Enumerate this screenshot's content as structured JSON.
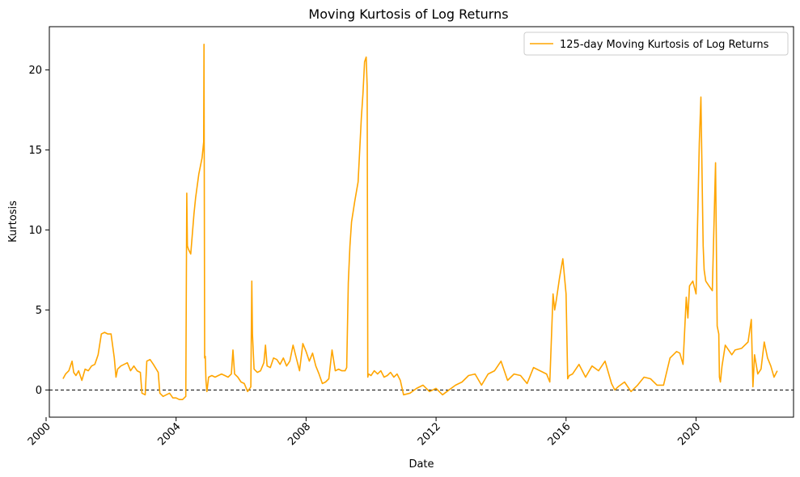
{
  "chart_data": {
    "type": "line",
    "title": "Moving Kurtosis of Log Returns",
    "xlabel": "Date",
    "ylabel": "Kurtosis",
    "xlim": [
      2000.1,
      2023.0
    ],
    "ylim": [
      -1.7,
      22.7
    ],
    "x_ticks": [
      2000,
      2004,
      2008,
      2012,
      2016,
      2020
    ],
    "x_tick_labels": [
      "2000",
      "2004",
      "2008",
      "2012",
      "2016",
      "2020"
    ],
    "y_ticks": [
      0,
      5,
      10,
      15,
      20
    ],
    "y_tick_labels": [
      "0",
      "5",
      "10",
      "15",
      "20"
    ],
    "grid": false,
    "legend_position": "top-right",
    "reference_line": {
      "y": 0,
      "style": "dashed",
      "color": "#000000"
    },
    "series": [
      {
        "name": "125-day Moving Kurtosis of Log Returns",
        "color": "#FFA500",
        "x": [
          2000.52,
          2000.6,
          2000.7,
          2000.8,
          2000.85,
          2000.92,
          2001.0,
          2001.1,
          2001.2,
          2001.3,
          2001.4,
          2001.5,
          2001.55,
          2001.6,
          2001.7,
          2001.8,
          2001.9,
          2002.0,
          2002.1,
          2002.15,
          2002.2,
          2002.3,
          2002.4,
          2002.5,
          2002.6,
          2002.7,
          2002.8,
          2002.9,
          2002.95,
          2003.05,
          2003.1,
          2003.2,
          2003.3,
          2003.45,
          2003.5,
          2003.6,
          2003.8,
          2003.9,
          2004.0,
          2004.1,
          2004.2,
          2004.3,
          2004.33,
          2004.35,
          2004.38,
          2004.45,
          2004.55,
          2004.6,
          2004.7,
          2004.8,
          2004.85,
          2004.86,
          2004.88,
          2004.9,
          2004.92,
          2004.95,
          2005.0,
          2005.1,
          2005.2,
          2005.3,
          2005.4,
          2005.5,
          2005.6,
          2005.7,
          2005.75,
          2005.8,
          2005.9,
          2006.0,
          2006.1,
          2006.2,
          2006.3,
          2006.33,
          2006.35,
          2006.4,
          2006.5,
          2006.6,
          2006.7,
          2006.75,
          2006.8,
          2006.9,
          2007.0,
          2007.1,
          2007.2,
          2007.3,
          2007.4,
          2007.5,
          2007.6,
          2007.7,
          2007.8,
          2007.9,
          2008.0,
          2008.1,
          2008.2,
          2008.3,
          2008.4,
          2008.5,
          2008.6,
          2008.7,
          2008.8,
          2008.9,
          2009.0,
          2009.1,
          2009.2,
          2009.25,
          2009.3,
          2009.35,
          2009.4,
          2009.5,
          2009.6,
          2009.7,
          2009.75,
          2009.8,
          2009.85,
          2009.88,
          2009.9,
          2009.92,
          2010.0,
          2010.1,
          2010.2,
          2010.3,
          2010.4,
          2010.5,
          2010.6,
          2010.7,
          2010.8,
          2010.9,
          2011.0,
          2011.2,
          2011.4,
          2011.6,
          2011.8,
          2012.0,
          2012.2,
          2012.4,
          2012.6,
          2012.8,
          2013.0,
          2013.2,
          2013.4,
          2013.6,
          2013.8,
          2014.0,
          2014.2,
          2014.4,
          2014.6,
          2014.8,
          2015.0,
          2015.2,
          2015.4,
          2015.5,
          2015.6,
          2015.65,
          2015.7,
          2015.8,
          2015.9,
          2016.0,
          2016.05,
          2016.1,
          2016.2,
          2016.4,
          2016.6,
          2016.8,
          2017.0,
          2017.2,
          2017.4,
          2017.5,
          2017.6,
          2017.8,
          2018.0,
          2018.2,
          2018.4,
          2018.6,
          2018.8,
          2019.0,
          2019.2,
          2019.4,
          2019.5,
          2019.6,
          2019.7,
          2019.75,
          2019.8,
          2019.9,
          2020.0,
          2020.1,
          2020.15,
          2020.2,
          2020.22,
          2020.25,
          2020.3,
          2020.4,
          2020.5,
          2020.6,
          2020.65,
          2020.7,
          2020.72,
          2020.75,
          2020.8,
          2020.9,
          2021.0,
          2021.1,
          2021.2,
          2021.4,
          2021.6,
          2021.7,
          2021.75,
          2021.8,
          2021.9,
          2022.0,
          2022.1,
          2022.2,
          2022.3,
          2022.4,
          2022.5
        ],
        "y": [
          0.7,
          1.0,
          1.2,
          1.8,
          1.1,
          0.9,
          1.2,
          0.6,
          1.3,
          1.2,
          1.5,
          1.6,
          1.9,
          2.2,
          3.5,
          3.6,
          3.5,
          3.5,
          2.0,
          0.8,
          1.3,
          1.5,
          1.6,
          1.7,
          1.2,
          1.5,
          1.2,
          1.1,
          -0.2,
          -0.3,
          1.8,
          1.9,
          1.6,
          1.1,
          -0.2,
          -0.4,
          -0.2,
          -0.5,
          -0.5,
          -0.6,
          -0.6,
          -0.4,
          12.3,
          9.0,
          8.8,
          8.5,
          11.0,
          12.0,
          13.5,
          14.5,
          15.5,
          21.6,
          2.0,
          2.1,
          0.6,
          -0.1,
          0.8,
          0.9,
          0.8,
          0.9,
          1.0,
          0.9,
          0.8,
          1.0,
          2.5,
          1.0,
          0.8,
          0.5,
          0.4,
          -0.1,
          0.2,
          6.8,
          3.5,
          1.3,
          1.1,
          1.2,
          1.7,
          2.8,
          1.5,
          1.4,
          2.0,
          1.9,
          1.6,
          2.0,
          1.5,
          1.8,
          2.8,
          2.0,
          1.2,
          2.9,
          2.4,
          1.8,
          2.3,
          1.5,
          1.0,
          0.4,
          0.5,
          0.7,
          2.5,
          1.2,
          1.3,
          1.2,
          1.2,
          1.4,
          6.7,
          9.0,
          10.5,
          11.8,
          13.0,
          17.0,
          18.5,
          20.5,
          20.8,
          19.0,
          0.8,
          1.0,
          0.9,
          1.2,
          1.0,
          1.2,
          0.8,
          0.9,
          1.1,
          0.8,
          1.0,
          0.6,
          -0.3,
          -0.2,
          0.1,
          0.3,
          -0.1,
          0.1,
          -0.3,
          0.0,
          0.3,
          0.5,
          0.9,
          1.0,
          0.3,
          1.0,
          1.2,
          1.8,
          0.6,
          1.0,
          0.9,
          0.4,
          1.4,
          1.2,
          1.0,
          0.5,
          6.0,
          5.0,
          5.6,
          7.0,
          8.2,
          6.0,
          0.7,
          0.9,
          1.0,
          1.6,
          0.8,
          1.5,
          1.2,
          1.8,
          0.4,
          0.0,
          0.2,
          0.5,
          -0.1,
          0.3,
          0.8,
          0.7,
          0.3,
          0.3,
          2.0,
          2.4,
          2.3,
          1.6,
          5.8,
          4.5,
          6.5,
          6.8,
          6.0,
          15.4,
          18.3,
          11.5,
          9.0,
          7.5,
          6.8,
          6.5,
          6.2,
          14.2,
          4.0,
          3.5,
          0.8,
          0.5,
          1.5,
          2.8,
          2.5,
          2.2,
          2.5,
          2.6,
          3.0,
          4.4,
          0.2,
          2.2,
          1.0,
          1.3,
          3.0,
          2.0,
          1.5,
          0.8,
          1.2
        ]
      }
    ]
  }
}
